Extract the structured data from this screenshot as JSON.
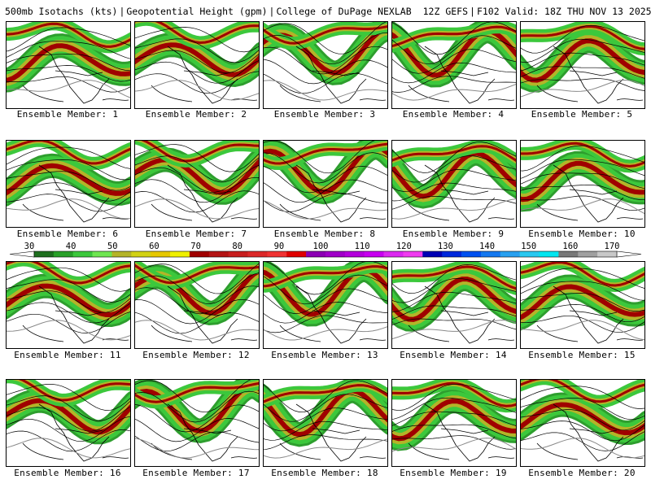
{
  "header": {
    "variable": "500mb Isotachs (kts)",
    "variable2": "Geopotential Height (gpm)",
    "source": "College of DuPage NEXLAB",
    "run": "12Z GEFS",
    "forecast": "F102 Valid: 18Z THU NOV 13 2025"
  },
  "panels": [
    {
      "caption": "Ensemble Member: 1"
    },
    {
      "caption": "Ensemble Member: 2"
    },
    {
      "caption": "Ensemble Member: 3"
    },
    {
      "caption": "Ensemble Member: 4"
    },
    {
      "caption": "Ensemble Member: 5"
    },
    {
      "caption": "Ensemble Member: 6"
    },
    {
      "caption": "Ensemble Member: 7"
    },
    {
      "caption": "Ensemble Member: 8"
    },
    {
      "caption": "Ensemble Member: 9"
    },
    {
      "caption": "Ensemble Member: 10"
    },
    {
      "caption": "Ensemble Member: 11"
    },
    {
      "caption": "Ensemble Member: 12"
    },
    {
      "caption": "Ensemble Member: 13"
    },
    {
      "caption": "Ensemble Member: 14"
    },
    {
      "caption": "Ensemble Member: 15"
    },
    {
      "caption": "Ensemble Member: 16"
    },
    {
      "caption": "Ensemble Member: 17"
    },
    {
      "caption": "Ensemble Member: 18"
    },
    {
      "caption": "Ensemble Member: 19"
    },
    {
      "caption": "Ensemble Member: 20"
    }
  ],
  "colorbar": {
    "labels": [
      "30",
      "40",
      "50",
      "60",
      "70",
      "80",
      "90",
      "100",
      "110",
      "120",
      "130",
      "140",
      "150",
      "160",
      "170"
    ],
    "colors": [
      "#1e6e1e",
      "#28a028",
      "#3cc83c",
      "#6ee650",
      "#b4b428",
      "#d2d214",
      "#e6c800",
      "#f0f000",
      "#a00000",
      "#b41414",
      "#c81e1e",
      "#dc2828",
      "#f03232",
      "#e00000",
      "#8c00b4",
      "#a000c8",
      "#b400dc",
      "#c800f0",
      "#dc28f0",
      "#f03cf0",
      "#0000b4",
      "#0028dc",
      "#0050f0",
      "#1478f0",
      "#28a0f0",
      "#28c8f0",
      "#00e6f0",
      "#787878",
      "#a0a0a0",
      "#c8c8c8"
    ]
  }
}
